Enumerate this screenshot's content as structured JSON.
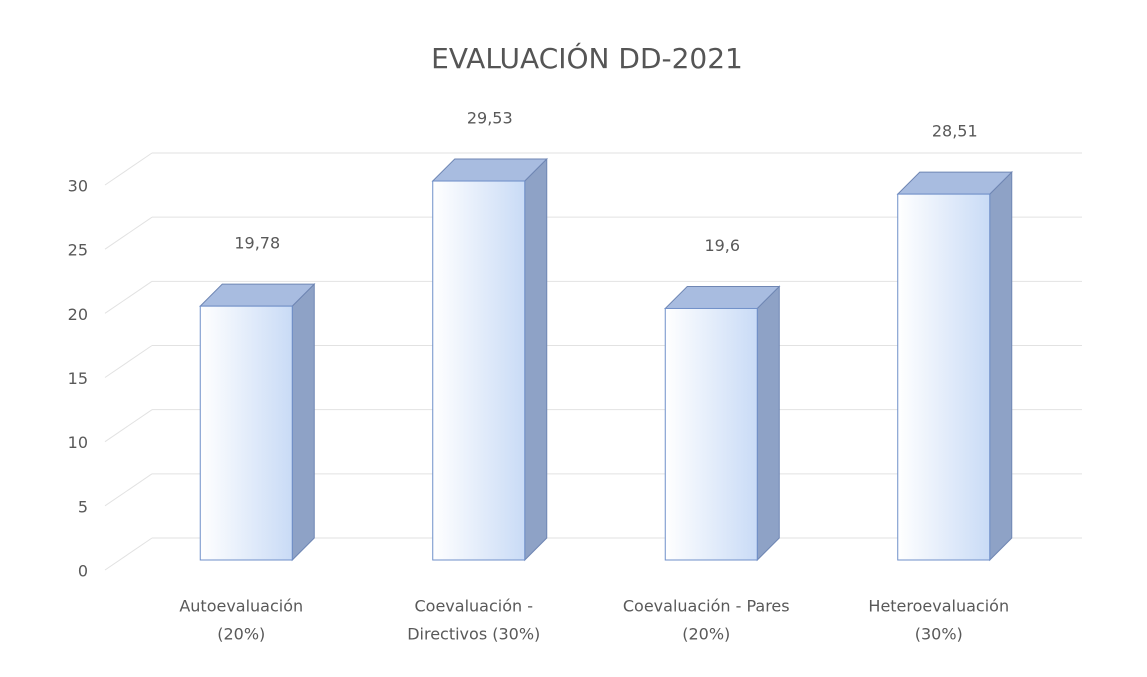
{
  "chart_data": {
    "type": "bar3d",
    "title": "EVALUACIÓN DD-2021",
    "categories": [
      [
        "Autoevaluación",
        "(20%)"
      ],
      [
        "Coevaluación -",
        "Directivos (30%)"
      ],
      [
        "Coevaluación - Pares",
        "(20%)"
      ],
      [
        "Heteroevaluación",
        "(30%)"
      ]
    ],
    "values": [
      19.78,
      29.53,
      19.6,
      28.51
    ],
    "value_labels": [
      "19,78",
      "29,53",
      "19,6",
      "28,51"
    ],
    "color": "#c9dbf6",
    "ylim": [
      0,
      30
    ],
    "yticks": [
      0,
      5,
      10,
      15,
      20,
      25,
      30
    ],
    "grid": true
  }
}
